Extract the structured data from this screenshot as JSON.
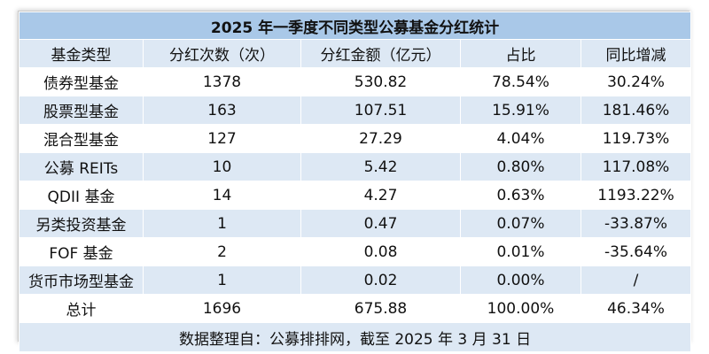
{
  "title": "2025 年一季度不同类型公募基金分红统计",
  "headers": [
    "基金类型",
    "分红次数（次）",
    "分红金额（亿元）",
    "占比",
    "同比增减"
  ],
  "rows": [
    [
      "债券型基金",
      "1378",
      "530.82",
      "78.54%",
      "30.24%"
    ],
    [
      "股票型基金",
      "163",
      "107.51",
      "15.91%",
      "181.46%"
    ],
    [
      "混合型基金",
      "127",
      "27.29",
      "4.04%",
      "119.73%"
    ],
    [
      "公募 REITs",
      "10",
      "5.42",
      "0.80%",
      "117.08%"
    ],
    [
      "QDII 基金",
      "14",
      "4.27",
      "0.63%",
      "1193.22%"
    ],
    [
      "另类投资基金",
      "1",
      "0.47",
      "0.07%",
      "-33.87%"
    ],
    [
      "FOF 基金",
      "2",
      "0.08",
      "0.01%",
      "-35.64%"
    ],
    [
      "货币市场型基金",
      "1",
      "0.02",
      "0.00%",
      "/"
    ]
  ],
  "total": [
    "总计",
    "1696",
    "675.88",
    "100.00%",
    "46.34%"
  ],
  "footer": "数据整理自：公募排排网，截至 2025 年 3 月 31 日"
}
